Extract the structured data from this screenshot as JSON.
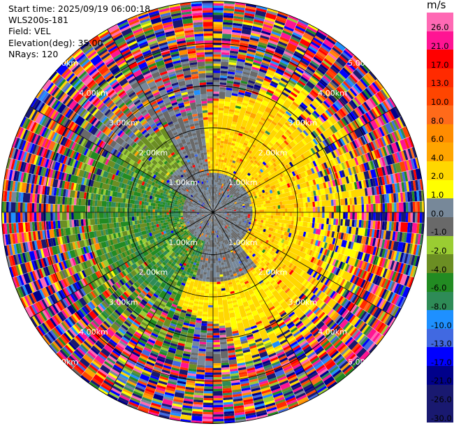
{
  "header": {
    "start_time": "Start time: 2025/09/19 06:00:18",
    "station": "WLS200s-181",
    "field": "Field: VEL",
    "elevation": "Elevation(deg): 35.00",
    "nrays": "NRays: 120"
  },
  "chart_data": {
    "type": "ppi_polar",
    "field": "VEL",
    "unit": "m/s",
    "elevation_deg": 35.0,
    "nrays": 120,
    "range_rings_km": [
      1.0,
      2.0,
      3.0,
      4.0,
      5.0
    ],
    "range_labels": [
      "1.00km",
      "2.00km",
      "3.00km",
      "4.00km",
      "5.00km"
    ],
    "max_range_km": 6.2,
    "grid": true,
    "colorbar": {
      "title": "m/s",
      "levels": [
        26.0,
        21.0,
        17.0,
        13.0,
        10.0,
        8.0,
        6.0,
        4.0,
        2.0,
        1.0,
        0.0,
        -1.0,
        -2.0,
        -4.0,
        -6.0,
        -8.0,
        -10.0,
        -13.0,
        -17.0,
        -21.0,
        -26.0,
        -30.0
      ],
      "labels": [
        "26.0",
        "21.0",
        "17.0",
        "13.0",
        "10.0",
        "8.0",
        "6.0",
        "4.0",
        "2.0",
        "1.0",
        "0.0",
        "-1.0",
        "-2.0",
        "-4.0",
        "-6.0",
        "-8.0",
        "-10.0",
        "-13.0",
        "-17.0",
        "-21.0",
        "-26.0",
        "-30.0"
      ],
      "colors": [
        "#ff69b4",
        "#ff1493",
        "#ff0000",
        "#ff2a00",
        "#ff4500",
        "#ff6a1a",
        "#ff8c00",
        "#ffa500",
        "#ffd700",
        "#ffff00",
        "#778899",
        "#696969",
        "#9acd32",
        "#6b8e23",
        "#228b22",
        "#2e8b57",
        "#1e90ff",
        "#4169e1",
        "#0000ff",
        "#00008b",
        "#191970",
        "#191970"
      ]
    },
    "near_field_pattern": {
      "description_values": "within ~2.5 km: yellow 1-4 m/s to the north-east and east, green -1 to -8 m/s to the south-west, gray ~0 m/s along the east-west line; beyond ~3 km noisy values across full range"
    }
  }
}
